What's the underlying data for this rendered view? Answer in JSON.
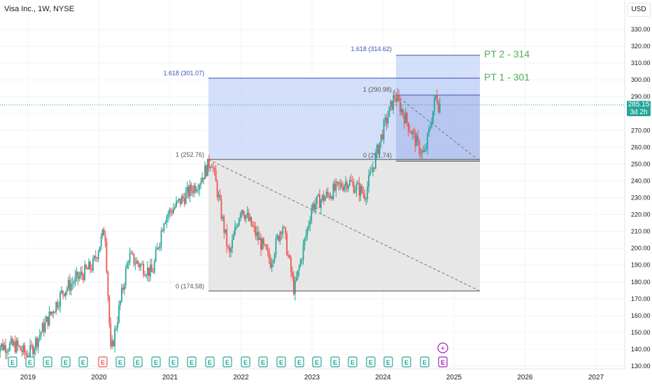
{
  "header": {
    "title": "Visa Inc., 1W, NYSE",
    "currency": "USD"
  },
  "last_price": {
    "value": "285.15",
    "countdown": "3d 2h"
  },
  "targets": [
    {
      "label": "PT 1 - 301"
    },
    {
      "label": "PT 2 - 314"
    }
  ],
  "fib_labels": {
    "left_top": "1.618 (301.07)",
    "left_one": "1 (252.76)",
    "left_zero": "0 (174.58)",
    "right_top": "1.618 (314.62)",
    "right_one": "1 (290.98)",
    "right_zero": "0 (251.74)"
  },
  "earnings_marker": "E",
  "dividend_marker": "+",
  "colors": {
    "up": "#26a69a",
    "down": "#ef5350",
    "box_blue": "#c5d4f7",
    "box_gray": "#e3e3e3",
    "fib_line": "#3f51b5",
    "target_text": "#4caf50",
    "earnings_green": "#26a69a",
    "earnings_red": "#ef5350",
    "earnings_purple": "#9c27b0"
  },
  "chart_data": {
    "type": "candlestick",
    "symbol": "V",
    "interval": "1W",
    "ylim": [
      128,
      338
    ],
    "y_ticks": [
      130,
      140,
      150,
      160,
      170,
      180,
      190,
      200,
      210,
      220,
      230,
      240,
      250,
      260,
      270,
      280,
      290,
      300,
      310,
      320,
      330
    ],
    "x_ticks": [
      "2019",
      "2020",
      "2021",
      "2022",
      "2023",
      "2024",
      "2025",
      "2026",
      "2027"
    ],
    "key_points": [
      {
        "date": "2018-11",
        "close": 142
      },
      {
        "date": "2019-01",
        "close": 136
      },
      {
        "date": "2019-07",
        "close": 175
      },
      {
        "date": "2019-12",
        "close": 190
      },
      {
        "date": "2020-02",
        "close": 212
      },
      {
        "date": "2020-03",
        "close": 137
      },
      {
        "date": "2020-06",
        "close": 195
      },
      {
        "date": "2020-10",
        "close": 185
      },
      {
        "date": "2020-12",
        "close": 218
      },
      {
        "date": "2021-06",
        "close": 240
      },
      {
        "date": "2021-08",
        "close": 252.76
      },
      {
        "date": "2021-11",
        "close": 195
      },
      {
        "date": "2022-01",
        "close": 225
      },
      {
        "date": "2022-06",
        "close": 192
      },
      {
        "date": "2022-08",
        "close": 215
      },
      {
        "date": "2022-10",
        "close": 174.58
      },
      {
        "date": "2023-01",
        "close": 225
      },
      {
        "date": "2023-07",
        "close": 240
      },
      {
        "date": "2023-10",
        "close": 232
      },
      {
        "date": "2024-01",
        "close": 270
      },
      {
        "date": "2024-03",
        "close": 290.98
      },
      {
        "date": "2024-07",
        "close": 260
      },
      {
        "date": "2024-08",
        "close": 255
      },
      {
        "date": "2024-10",
        "close": 292
      },
      {
        "date": "2024-10-last",
        "close": 285.15
      }
    ],
    "fib_extensions": [
      {
        "level": "0",
        "value": 174.58
      },
      {
        "level": "1",
        "value": 252.76
      },
      {
        "level": "1.618",
        "value": 301.07
      },
      {
        "level": "0",
        "value": 251.74
      },
      {
        "level": "1",
        "value": 290.98
      },
      {
        "level": "1.618",
        "value": 314.62
      }
    ],
    "price_targets": [
      301,
      314
    ]
  }
}
